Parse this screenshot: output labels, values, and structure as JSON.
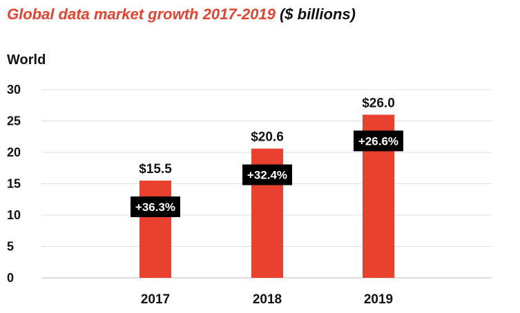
{
  "chart_data": {
    "type": "bar",
    "title": "Global data market growth 2017-2019",
    "subtitle": "($ billions)",
    "region_label": "World",
    "categories": [
      "2017",
      "2018",
      "2019"
    ],
    "values": [
      15.5,
      20.6,
      26.0
    ],
    "value_labels": [
      "$15.5",
      "$20.6",
      "$26.0"
    ],
    "growth_labels": [
      "+36.3%",
      "+32.4%",
      "+26.6%"
    ],
    "yticks": [
      0,
      5,
      10,
      15,
      20,
      25,
      30
    ],
    "ylim": [
      0,
      30
    ],
    "grid": true,
    "bar_color": "#e8412f",
    "growth_badge_color": "#000000"
  }
}
